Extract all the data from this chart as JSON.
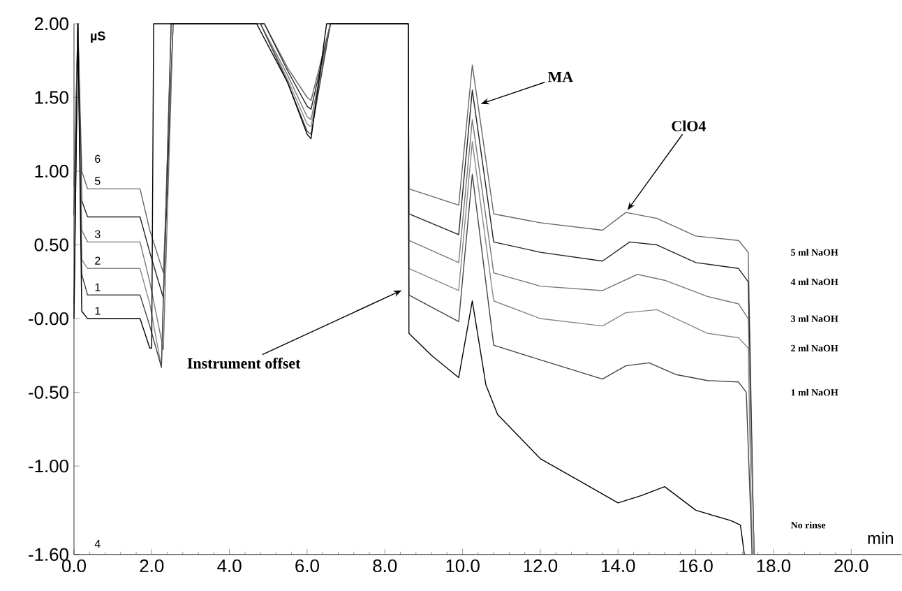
{
  "chart_data": {
    "type": "line",
    "xlabel": "min",
    "ylabel": "µS",
    "xlim": [
      0,
      21.3
    ],
    "ylim": [
      -1.6,
      2.0
    ],
    "xticks": [
      {
        "value": 0,
        "label": "0.0"
      },
      {
        "value": 2,
        "label": "2.0"
      },
      {
        "value": 4,
        "label": "4.0"
      },
      {
        "value": 6,
        "label": "6.0"
      },
      {
        "value": 8,
        "label": "8.0"
      },
      {
        "value": 10,
        "label": "10.0"
      },
      {
        "value": 12,
        "label": "12.0"
      },
      {
        "value": 14,
        "label": "14.0"
      },
      {
        "value": 16,
        "label": "16.0"
      },
      {
        "value": 18,
        "label": "18.0"
      },
      {
        "value": 20,
        "label": "20.0"
      }
    ],
    "yticks": [
      {
        "value": 2,
        "label": "2.00"
      },
      {
        "value": 1.5,
        "label": "1.50"
      },
      {
        "value": 1,
        "label": "1.00"
      },
      {
        "value": 0.5,
        "label": "0.50"
      },
      {
        "value": 0,
        "label": "-0.00"
      },
      {
        "value": -0.5,
        "label": "-0.50"
      },
      {
        "value": -1,
        "label": "-1.00"
      },
      {
        "value": -1.6,
        "label": "-1.60"
      }
    ],
    "series": [
      {
        "name": "5 ml NaOH",
        "color": "#666666",
        "x": [
          0,
          0.1,
          0.2,
          0.35,
          1.7,
          1.95,
          2.3,
          2.55,
          4.9,
          5.5,
          6.0,
          6.1,
          6.6,
          8.6,
          8.62,
          9.9,
          10.25,
          10.8,
          12.0,
          13.6,
          14.2,
          15.0,
          16.0,
          17.1,
          17.35,
          17.5
        ],
        "values": [
          0.9,
          2,
          1.0,
          0.88,
          0.88,
          0.6,
          0.31,
          2,
          2,
          1.7,
          1.5,
          1.48,
          2,
          2,
          0.88,
          0.77,
          1.72,
          0.71,
          0.65,
          0.6,
          0.72,
          0.68,
          0.56,
          0.53,
          0.45,
          -1.6
        ]
      },
      {
        "name": "4 ml NaOH",
        "color": "#222222",
        "x": [
          0,
          0.1,
          0.2,
          0.35,
          1.7,
          1.95,
          2.3,
          2.55,
          4.9,
          5.5,
          6.0,
          6.1,
          6.6,
          8.6,
          8.62,
          9.9,
          10.25,
          10.8,
          12.0,
          13.6,
          14.3,
          15.0,
          16.0,
          17.1,
          17.35,
          17.5
        ],
        "values": [
          0.7,
          2,
          0.8,
          0.69,
          0.69,
          0.45,
          0.14,
          2,
          2,
          1.68,
          1.44,
          1.42,
          2,
          2,
          0.71,
          0.57,
          1.55,
          0.52,
          0.45,
          0.39,
          0.52,
          0.5,
          0.38,
          0.34,
          0.25,
          -1.6
        ]
      },
      {
        "name": "3 ml NaOH",
        "color": "#777777",
        "x": [
          0,
          0.1,
          0.2,
          0.35,
          1.7,
          1.95,
          2.3,
          2.55,
          4.8,
          5.5,
          6.0,
          6.1,
          6.6,
          8.6,
          8.62,
          9.9,
          10.25,
          10.8,
          12.0,
          13.6,
          14.5,
          15.2,
          16.3,
          17.1,
          17.35,
          17.5
        ],
        "values": [
          0.5,
          2,
          0.6,
          0.52,
          0.52,
          0.25,
          -0.21,
          2,
          2,
          1.65,
          1.37,
          1.35,
          2,
          2,
          0.53,
          0.38,
          1.35,
          0.31,
          0.22,
          0.19,
          0.3,
          0.26,
          0.15,
          0.1,
          0.0,
          -1.6
        ]
      },
      {
        "name": "2 ml NaOH",
        "color": "#888888",
        "x": [
          0,
          0.1,
          0.2,
          0.35,
          1.7,
          1.95,
          2.25,
          2.5,
          4.8,
          5.5,
          6.0,
          6.1,
          6.6,
          8.6,
          8.62,
          9.9,
          10.25,
          10.8,
          12.0,
          13.6,
          14.2,
          15.0,
          16.3,
          17.1,
          17.35,
          17.45
        ],
        "values": [
          0.3,
          2,
          0.4,
          0.34,
          0.34,
          0.1,
          -0.33,
          2,
          2,
          1.62,
          1.32,
          1.3,
          2,
          2,
          0.34,
          0.19,
          1.2,
          0.12,
          0.0,
          -0.05,
          0.04,
          0.06,
          -0.1,
          -0.13,
          -0.2,
          -1.6
        ]
      },
      {
        "name": "1 ml NaOH",
        "color": "#444444",
        "x": [
          0,
          0.1,
          0.2,
          0.35,
          1.7,
          1.95,
          2.25,
          2.5,
          4.8,
          5.5,
          6.0,
          6.1,
          6.6,
          8.6,
          8.62,
          9.9,
          10.25,
          10.8,
          12.0,
          13.6,
          14.2,
          14.8,
          15.5,
          16.3,
          17.1,
          17.3,
          17.45
        ],
        "values": [
          0.1,
          2,
          0.3,
          0.16,
          0.16,
          -0.05,
          -0.33,
          2,
          2,
          1.6,
          1.27,
          1.25,
          2,
          2,
          0.16,
          -0.02,
          0.98,
          -0.18,
          -0.28,
          -0.41,
          -0.32,
          -0.3,
          -0.38,
          -0.42,
          -0.43,
          -0.5,
          -1.6
        ]
      },
      {
        "name": "No rinse",
        "color": "#000000",
        "x": [
          0,
          0.1,
          0.2,
          0.35,
          1.7,
          1.95,
          2.0,
          2.05,
          4.7,
          5.5,
          6.0,
          6.1,
          6.5,
          8.6,
          8.62,
          9.2,
          9.9,
          10.25,
          10.6,
          10.9,
          12.0,
          13.0,
          14.0,
          14.6,
          15.2,
          16.0,
          16.9,
          17.15,
          17.25
        ],
        "values": [
          0,
          2,
          0.05,
          0,
          0,
          -0.2,
          -0.2,
          2,
          2,
          1.6,
          1.25,
          1.22,
          2,
          2,
          -0.1,
          -0.25,
          -0.4,
          0.12,
          -0.45,
          -0.65,
          -0.95,
          -1.1,
          -1.25,
          -1.2,
          -1.14,
          -1.3,
          -1.37,
          -1.4,
          -1.6
        ]
      }
    ],
    "annotations": [
      {
        "text": "MA",
        "x": 10.4,
        "y": 1.45
      },
      {
        "text": "ClO4",
        "x": 14.2,
        "y": 0.72
      },
      {
        "text": "Instrument offset",
        "x": 8.5,
        "y": 0.2
      },
      "6",
      "5",
      "3",
      "2",
      "1",
      "1",
      "4"
    ]
  }
}
